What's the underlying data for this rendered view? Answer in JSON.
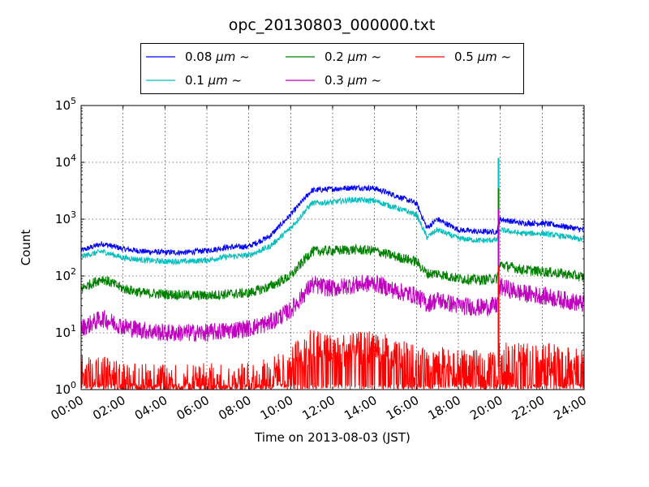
{
  "chart_data": {
    "type": "line",
    "title": "opc_20130803_000000.txt",
    "xlabel": "Time on 2013-08-03 (JST)",
    "ylabel": "Count",
    "y_scale": "log",
    "xlim": [
      "00:00",
      "24:00"
    ],
    "ylim": [
      1,
      100000
    ],
    "x_ticks": [
      "00:00",
      "02:00",
      "04:00",
      "06:00",
      "08:00",
      "10:00",
      "12:00",
      "14:00",
      "16:00",
      "18:00",
      "20:00",
      "22:00",
      "24:00"
    ],
    "y_ticks": [
      {
        "value": 1,
        "base": "10",
        "exp": "0"
      },
      {
        "value": 10,
        "base": "10",
        "exp": "1"
      },
      {
        "value": 100,
        "base": "10",
        "exp": "2"
      },
      {
        "value": 1000,
        "base": "10",
        "exp": "3"
      },
      {
        "value": 10000,
        "base": "10",
        "exp": "4"
      },
      {
        "value": 100000,
        "base": "10",
        "exp": "5"
      }
    ],
    "grid": true,
    "legend_position": "top-center",
    "x": [
      "00:00",
      "01:00",
      "02:00",
      "03:00",
      "04:00",
      "05:00",
      "06:00",
      "07:00",
      "08:00",
      "09:00",
      "10:00",
      "11:00",
      "12:00",
      "13:00",
      "14:00",
      "15:00",
      "16:00",
      "16:30",
      "17:00",
      "18:00",
      "19:00",
      "19:50",
      "20:00",
      "21:00",
      "22:00",
      "23:00",
      "24:00"
    ],
    "series": [
      {
        "name_prefix": "0.08 ",
        "name_unit": "μm",
        "name_suffix": " ~",
        "color": "#0000ff",
        "values": [
          280,
          370,
          300,
          270,
          260,
          260,
          280,
          320,
          330,
          500,
          1200,
          3200,
          3400,
          3600,
          3500,
          2600,
          1900,
          700,
          1000,
          650,
          600,
          600,
          1000,
          850,
          850,
          750,
          650
        ]
      },
      {
        "name_prefix": "0.1 ",
        "name_unit": "μm",
        "name_suffix": " ~",
        "color": "#00bfbf",
        "values": [
          220,
          270,
          210,
          190,
          180,
          180,
          190,
          220,
          230,
          330,
          700,
          1900,
          2000,
          2200,
          2100,
          1600,
          1200,
          480,
          650,
          460,
          420,
          430,
          650,
          560,
          560,
          500,
          430
        ]
      },
      {
        "name_prefix": "0.2 ",
        "name_unit": "μm",
        "name_suffix": " ~",
        "color": "#008000",
        "values": [
          60,
          90,
          60,
          50,
          48,
          46,
          45,
          48,
          50,
          65,
          100,
          270,
          280,
          290,
          280,
          220,
          180,
          110,
          110,
          90,
          85,
          90,
          160,
          130,
          120,
          110,
          95
        ]
      },
      {
        "name_prefix": "0.3 ",
        "name_unit": "μm",
        "name_suffix": " ~",
        "color": "#bf00bf",
        "values": [
          12,
          18,
          13,
          11,
          10,
          10,
          10,
          11,
          12,
          15,
          25,
          70,
          60,
          70,
          75,
          55,
          45,
          32,
          38,
          30,
          28,
          30,
          65,
          50,
          45,
          38,
          32
        ]
      },
      {
        "name_prefix": "0.5 ",
        "name_unit": "μm",
        "name_suffix": " ~",
        "color": "#ff0000",
        "values": [
          2,
          2,
          1.5,
          1.5,
          1.5,
          1.4,
          1.5,
          1.5,
          1.5,
          1.8,
          3,
          6,
          5,
          5,
          6,
          4,
          3,
          2.5,
          3,
          2.5,
          2.5,
          2.5,
          4,
          3.5,
          3.5,
          3,
          2.5
        ]
      }
    ],
    "spike": {
      "x": "19:55",
      "values": [
        11000,
        12000,
        3500,
        1500,
        150
      ]
    }
  }
}
